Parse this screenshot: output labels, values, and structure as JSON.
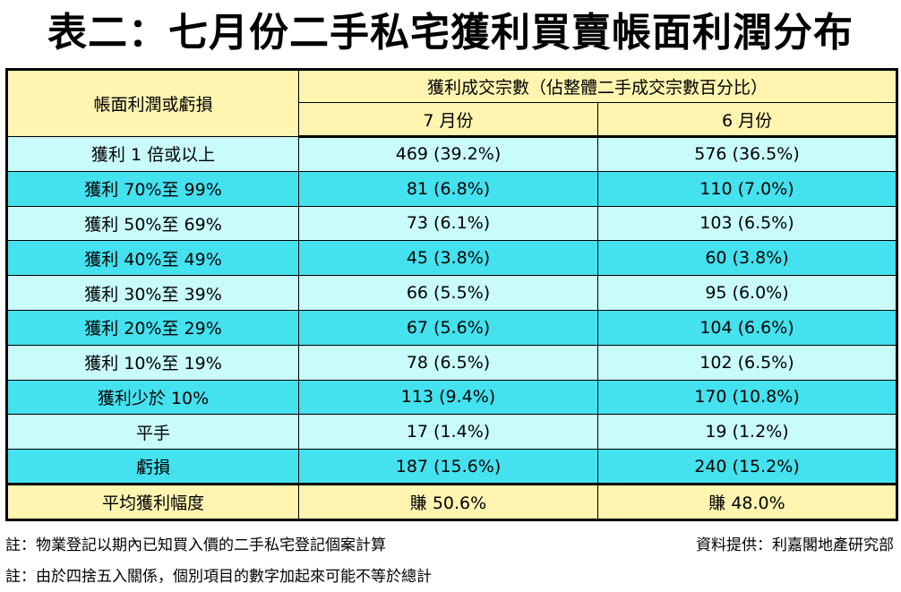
{
  "title": "表二：七月份二手私宅獲利買賣帳面利潤分布",
  "header": {
    "row_label": "帳面利潤或虧損",
    "group_label": "獲利成交宗數（佔整體二手成交宗數百分比）",
    "col_july": "7 月份",
    "col_june": "6 月份"
  },
  "rows": [
    {
      "label": "獲利 1 倍或以上",
      "july": "469 (39.2%)",
      "june": "576 (36.5%)"
    },
    {
      "label": "獲利 70%至 99%",
      "july": "81 (6.8%)",
      "june": "110 (7.0%)"
    },
    {
      "label": "獲利 50%至 69%",
      "july": "73 (6.1%)",
      "june": "103 (6.5%)"
    },
    {
      "label": "獲利 40%至 49%",
      "july": "45 (3.8%)",
      "june": "60 (3.8%)"
    },
    {
      "label": "獲利 30%至 39%",
      "july": "66 (5.5%)",
      "june": "95 (6.0%)"
    },
    {
      "label": "獲利 20%至 29%",
      "july": "67 (5.6%)",
      "june": "104 (6.6%)"
    },
    {
      "label": "獲利 10%至 19%",
      "july": "78 (6.5%)",
      "june": "102 (6.5%)"
    },
    {
      "label": "獲利少於 10%",
      "july": "113 (9.4%)",
      "june": "170 (10.8%)"
    },
    {
      "label": "平手",
      "july": "17 (1.4%)",
      "june": "19 (1.2%)"
    },
    {
      "label": "虧損",
      "july": "187 (15.6%)",
      "june": "240 (15.2%)"
    }
  ],
  "average": {
    "label": "平均獲利幅度",
    "july": "賺 50.6%",
    "june": "賺 48.0%"
  },
  "notes": {
    "note1": "註：物業登記以期內已知買入價的二手私宅登記個案計算",
    "source": "資料提供：利嘉閣地產研究部",
    "note2": "註：由於四捨五入關係，個別項目的數字加起來可能不等於總計"
  },
  "colors": {
    "header_bg": "#fff5b0",
    "row_light": "#c8fbfa",
    "row_dark": "#44e1ee"
  }
}
